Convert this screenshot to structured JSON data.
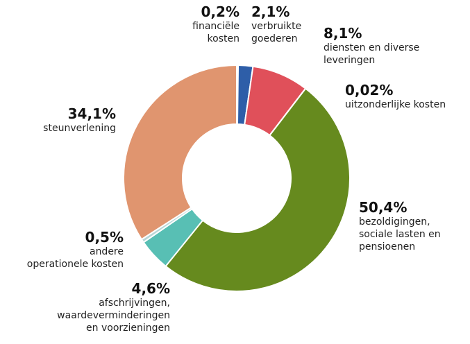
{
  "chart_data": {
    "type": "donut",
    "categories": [
      "financiële\nkosten",
      "verbruikte\ngoederen",
      "diensten en diverse\nleveringen",
      "uitzonderlijke kosten",
      "bezoldigingen,\nsociale lasten en\npensioenen",
      "afschrijvingen,\nwaardeverminderingen\nen voorzieningen",
      "andere\noperationele kosten",
      "steunverlening"
    ],
    "values": [
      0.2,
      2.1,
      8.1,
      0.02,
      50.4,
      4.6,
      0.5,
      34.1
    ],
    "value_labels": [
      "0,2%",
      "2,1%",
      "8,1%",
      "0,02%",
      "50,4%",
      "4,6%",
      "0,5%",
      "34,1%"
    ],
    "colors": [
      "#f3b5b5",
      "#2e5ea8",
      "#e0505a",
      "#b58bc4",
      "#668a1e",
      "#58bfb4",
      "#b8d6d6",
      "#e0956f"
    ]
  }
}
